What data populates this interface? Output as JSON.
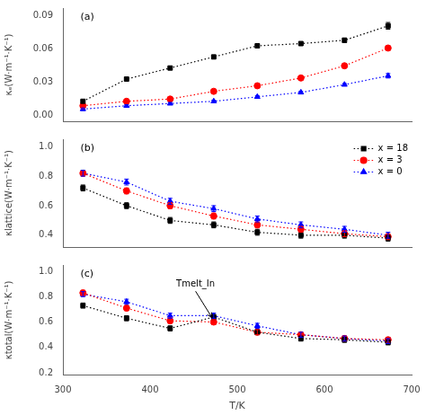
{
  "chart_data": [
    {
      "type": "line",
      "ylabel": "κₑ(W·m⁻¹·K⁻¹)",
      "annotations": [
        {
          "text": "(a)"
        }
      ],
      "x": [
        323,
        373,
        423,
        473,
        523,
        573,
        623,
        673
      ],
      "series": [
        {
          "name": "x = 18",
          "color": "black",
          "marker": "square",
          "line_style": "dotted",
          "values": [
            0.013,
            0.033,
            0.043,
            0.053,
            0.063,
            0.065,
            0.068,
            0.081
          ],
          "errors": [
            0.001,
            0.001,
            0.001,
            0.001,
            0.001,
            0.001,
            0.002,
            0.003
          ]
        },
        {
          "name": "x = 3",
          "color": "red",
          "marker": "circle",
          "line_style": "dotted",
          "values": [
            0.009,
            0.013,
            0.015,
            0.022,
            0.027,
            0.034,
            0.045,
            0.061
          ],
          "errors": [
            0.001,
            0.001,
            0.001,
            0.001,
            0.001,
            0.001,
            0.001,
            0.002
          ]
        },
        {
          "name": "x = 0",
          "color": "blue",
          "marker": "triangle",
          "line_style": "dotted",
          "values": [
            0.006,
            0.009,
            0.011,
            0.013,
            0.017,
            0.021,
            0.028,
            0.036
          ],
          "errors": [
            0.001,
            0.001,
            0.001,
            0.001,
            0.001,
            0.001,
            0.001,
            0.002
          ]
        }
      ],
      "xlim": [
        300,
        700
      ],
      "xticks": [
        300,
        400,
        500,
        600,
        700
      ],
      "ylim": [
        -0.005,
        0.097
      ],
      "yticks": [
        {
          "value": 0,
          "label": "0.00"
        },
        0.03,
        0.06,
        0.09
      ],
      "grid": false,
      "tick_labels": "y"
    },
    {
      "type": "line",
      "ylabel": "κlattice(W·m⁻¹·K⁻¹)",
      "annotations": [
        {
          "text": "(b)"
        }
      ],
      "x": [
        323,
        373,
        423,
        473,
        523,
        573,
        623,
        673
      ],
      "series": [
        {
          "name": "x = 18",
          "color": "black",
          "marker": "square",
          "line_style": "dotted",
          "values": [
            0.72,
            0.6,
            0.5,
            0.47,
            0.42,
            0.4,
            0.4,
            0.38
          ],
          "errors": [
            0.02,
            0.02,
            0.02,
            0.02,
            0.02,
            0.02,
            0.02,
            0.02
          ]
        },
        {
          "name": "x = 3",
          "color": "red",
          "marker": "circle",
          "line_style": "dotted",
          "values": [
            0.82,
            0.7,
            0.6,
            0.53,
            0.47,
            0.44,
            0.41,
            0.39
          ],
          "errors": [
            0.02,
            0.02,
            0.02,
            0.02,
            0.02,
            0.02,
            0.02,
            0.02
          ]
        },
        {
          "name": "x = 0",
          "color": "blue",
          "marker": "triangle",
          "line_style": "dotted",
          "values": [
            0.82,
            0.76,
            0.63,
            0.58,
            0.51,
            0.47,
            0.44,
            0.4
          ],
          "errors": [
            0.02,
            0.02,
            0.02,
            0.02,
            0.02,
            0.02,
            0.02,
            0.02
          ]
        }
      ],
      "xlim": [
        300,
        700
      ],
      "xticks": [
        300,
        400,
        500,
        600,
        700
      ],
      "ylim": [
        0.32,
        1.05
      ],
      "yticks": [
        0.4,
        0.6,
        0.8,
        {
          "value": 1.0,
          "label": "1.0"
        }
      ],
      "grid": false,
      "legend": "upper right",
      "tick_labels": "y"
    },
    {
      "type": "line",
      "xlabel": "T/K",
      "ylabel": "κtotal(W·m⁻¹·K⁻¹)",
      "annotations": [
        {
          "text": "(c)"
        },
        {
          "text": "Tmelt_In",
          "x": 430,
          "y": 0.935,
          "arrow_x": 471,
          "arrow_y": 0.635
        }
      ],
      "x": [
        323,
        373,
        423,
        473,
        523,
        573,
        623,
        673
      ],
      "series": [
        {
          "name": "x = 18",
          "color": "black",
          "marker": "square",
          "line_style": "dotted",
          "values": [
            0.73,
            0.63,
            0.55,
            0.64,
            0.52,
            0.47,
            0.46,
            0.44
          ],
          "errors": [
            0.02,
            0.02,
            0.02,
            0.02,
            0.02,
            0.02,
            0.02,
            0.02
          ]
        },
        {
          "name": "x = 3",
          "color": "red",
          "marker": "circle",
          "line_style": "dotted",
          "values": [
            0.83,
            0.71,
            0.61,
            0.6,
            0.52,
            0.5,
            0.47,
            0.46
          ],
          "errors": [
            0.02,
            0.02,
            0.02,
            0.02,
            0.02,
            0.02,
            0.02,
            0.02
          ]
        },
        {
          "name": "x = 0",
          "color": "blue",
          "marker": "triangle",
          "line_style": "dotted",
          "values": [
            0.82,
            0.76,
            0.65,
            0.65,
            0.57,
            0.5,
            0.47,
            0.45
          ],
          "errors": [
            0.02,
            0.02,
            0.02,
            0.02,
            0.02,
            0.02,
            0.02,
            0.02
          ]
        }
      ],
      "xlim": [
        300,
        700
      ],
      "xticks": [
        300,
        400,
        500,
        600,
        700
      ],
      "ylim": [
        0.18,
        1.05
      ],
      "yticks": [
        0.2,
        0.4,
        0.6,
        0.8,
        {
          "value": 1.0,
          "label": "1.0"
        }
      ],
      "grid": false
    }
  ]
}
